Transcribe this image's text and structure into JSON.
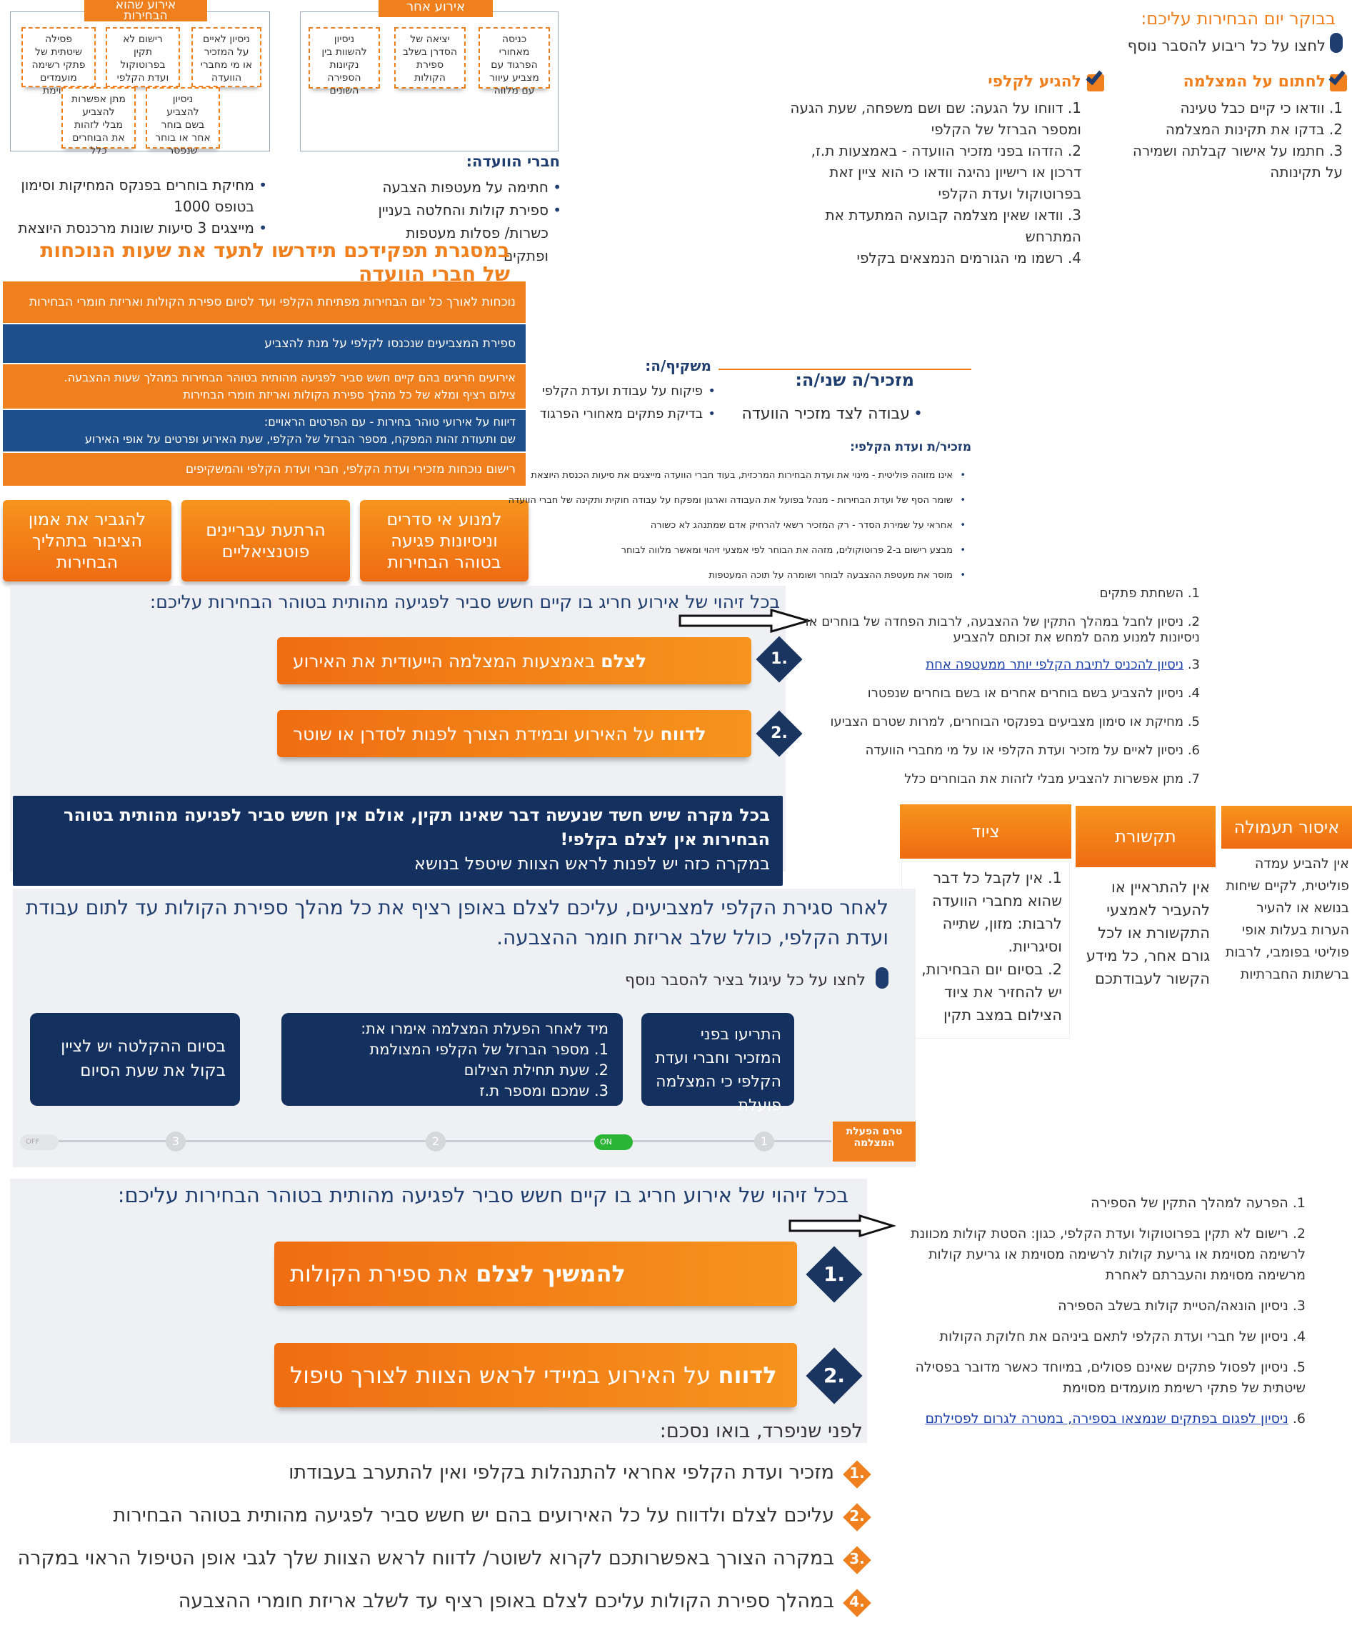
{
  "top_diagram": {
    "left_title": "אירוע שהוא\nהבחירות",
    "left_boxes": [
      "ניסיון לאיים\nעל המזכיר\nאו מי מחברי\nהוועדה",
      "רישום לא\nתקין\nבפרוטוקול\nועדת הקלפי",
      "פסילה\nשיטתית של\nפתקי רשימה\nמועמדים\nמסוימת",
      "ניסיון\nלהצביע\nבשם בוחר\nאחר או בוחר\nשנפטר",
      "מתן אפשרות\nלהצביע\nמבלי לזהות\nאת הבוחרים\nכלל"
    ],
    "right_title": "אירוע אחר",
    "right_boxes": [
      "כניסה\nמאחורי\nהפרגוד עם\nמצביע עיוור\nעם מלווה",
      "יציאה של\nהסדרן בשלב\nספירת\nהקולות",
      "ניסיון\nלהשוות בין\nנקיונות\nהספירה\nהשונים"
    ]
  },
  "committee": {
    "heading": "חברי הוועדה:",
    "right_items": [
      "חתימה על מעטפות הצבעה",
      "ספירת קולות והחלטה בעניין כשרות/ פסלות מעטפות ופתקים"
    ],
    "left_items": [
      "מחיקת בוחרים בפנקס המחיקות וסימון בטופס 1000",
      "מייצגים 3 סיעות שונות מרכנסת היוצאת"
    ],
    "big_title": "במסגרת תפקידכם תידרשו לתעד את שעות הנוכחות של חברי הוועדה"
  },
  "morning": {
    "heading": "בבוקר יום הבחירות עליכם:",
    "hint": "לחצו על כל ריבוע להסבר נוסף",
    "camera_title": "לחתום על המצלמה",
    "camera_items": [
      "וודאו כי קיים כבל טעינה",
      "בדקו את תקינות המצלמה",
      "חתמו על אישור קבלתה ושמירה על תקינותה"
    ],
    "camera_link": "המצלמה",
    "arrive_title": "להגיע לקלפי",
    "arrive_items": [
      "דווחו על הגעה: שם ושם משפחה, שעת הגעה ומספר הברזל של הקלפי",
      "הזדהו בפני מזכיר הוועדה - באמצעות ת.ז, דרכון או רישיון נהיגה וודאו כי הוא ציין זאת בפרוטוקול ועדת הקלפי",
      "וודאו שאין מצלמה קבועה המתעדת את המתרחש",
      "רשמו מי הגורמים הנמצאים בקלפי"
    ],
    "arrive_links": [
      "מספר הברזל של הקלפי",
      "פרוטוקול ועדת הקלפי"
    ]
  },
  "strips": [
    "נוכחות לאורך כל יום הבחירות מפתיחת הקלפי ועד לסיום ספירת הקולות ואריזת חומרי הבחירות",
    "ספירת המצביעים שנכנסו לקלפי על מנת להצביע",
    "אירועים חריגים בהם קיים חשש סביר לפגיעה מהותית בטוהר הבחירות במהלך שעות ההצבעה.\nצילום רציף ומלא של כל מהלך ספירת הקולות ואריזת חומרי הבחירות",
    "דיווח על אירועי טוהר בחירות - עם הפרטים הראויים:\nשם ותעודת זהות המפקח, מספר הברזל של הקלפי, שעת האירוע ופרטים על אופי האירוע",
    "רישום נוכחות מזכירי ועדת הקלפי, חברי ועדת הקלפי והמשקיפים"
  ],
  "tiles": [
    "למנוע אי סדרים\nוניסיונות פגיעה\nבטוהר הבחירות",
    "הרתעת עבריינים\nפוטנציאליים",
    "להגביר את אמון\nהציבור בתהליך\nהבחירות"
  ],
  "roles": {
    "observer_title": "משקיף/ה:",
    "observer_items": [
      "פיקוח על עבודת ועדת הקלפי",
      "בדיקת פתקים מאחורי הפרגוד"
    ],
    "secretary2_title": "מזכיר/ה שני/ה:",
    "secretary2_items": [
      "עבודה לצד מזכיר הוועדה"
    ],
    "secretary_title": "מזכיר/ת ועדת הקלפי:",
    "secretary_items": [
      "אינו מזוהה פוליטית - מינוי את ועדת הבחירות המרכזית, בעוד חברי הוועדה מייצגים את סיעות הכנסת היוצאת",
      "שומר הסף של ועדת הבחירות - מנהל בפועל את העבודה וארגון ומפקח על עבודה חוקית ותקינה של חברי הוועדה",
      "אחראי על שמירת הסדר - רק המזכיר רשאי להרחיק אדם שמתנהג לא כשורה",
      "מבצע רישום ב-2 פרוטוקולים, מזהה את הבוחר לפי אמצעי זיהוי ומאשר מלווה לבוחר",
      "מוסר את מעטפת ההצבעה לבוחר ושומרה על תוכה המעטפות"
    ]
  },
  "section1": {
    "intro": "בכל זיהוי של אירוע חריג בו קיים חשש סביר לפגיעה מהותית בטוהר הבחירות עליכם:",
    "link": "אירוע חריג",
    "steps": [
      {
        "num": "1.",
        "bold": "לצלם",
        "text": " באמצעות המצלמה הייעודית את האירוע"
      },
      {
        "num": "2.",
        "bold": "לדווח",
        "text": " על האירוע ובמידת הצורך לפנות לסדרן או שוטר"
      }
    ],
    "list": [
      "השחתת פתקים",
      "ניסיון לחבל במהלך התקין של ההצבעה, לרבות הפחדה של בוחרים או ניסיונות למנוע מהם למחש את זכותם להצביע",
      "ניסיון להכניס לתיבת הקלפי יותר ממעטפה אחת",
      "ניסיון להצביע בשם בוחרים אחרים או בשם בוחרים שנפטרו",
      "מחיקת או סימון מצביעים בפנקסי הבוחרים, למרות שטרם הצביעו",
      "ניסיון לאיים על מזכיר ועדת הקלפי או על מי מחברי הוועדה",
      "מתן אפשרות להצביע מבלי לזהות את הבוחרים כלל"
    ],
    "list_links": [
      "להכניס לתיבת הקלפי יותר ממעטפה אחת",
      "מחיקת או סימון מצביעים"
    ],
    "navy_note_1": "בכל מקרה שיש חשד שנעשה דבר שאינו תקין, אולם אין חשש סביר לפגיעה מהותית בטוהר הבחירות אין לצלם בקלפי!",
    "navy_note_2": "במקרה כזה יש לפנות לראש הצוות שיטפל בנושא"
  },
  "columns": [
    {
      "head": "ציוד",
      "body": "1. אין לקבל כל דבר שהוא מחברי הוועדה לרבות: מזון, שתייה וסיגריות.\n2. בסיום יום הבחירות, יש להחזיר את ציוד הצילום במצב תקין"
    },
    {
      "head": "תקשורת",
      "body": "אין להתראיין או להעביר לאמצעי התקשורת או לכל גורם אחר, כל מידע הקשור לעבודתכם"
    },
    {
      "head": "איסור תעמולה",
      "body": "אין להביע עמדה פוליטית, לקיים שיחות בנושא או להעיר הערות בעלות אופי פוליטי בפומבי, לרבות ברשתות החברתיות"
    }
  ],
  "closing": {
    "text": "לאחר סגירת הקלפי למצביעים, עליכם לצלם באופן רציף את כל מהלך ספירת הקולות עד לתום עבודת ועדת הקלפי, כולל שלב אריזת חומר ההצבעה.",
    "hint": "לחצו על כל עיגול בציר להסבר נוסף",
    "boxes": [
      "התריעו בפני המזכיר וחברי ועדת הקלפי כי המצלמה פועלת",
      "מיד לאחר הפעלת המצלמה אימרו את:\n1. מספר הברזל של הקלפי המצולמת\n2. שעת תחילת הצילום\n3. שמכם ומספר ת.ז",
      "בסיום ההקלטה יש לציין בקול את שעת הסיום"
    ],
    "timeline_label": "טרם הפעלת המצלמה",
    "toggle_on": "ON",
    "toggle_off": "OFF",
    "nodes": [
      "1",
      "2",
      "3"
    ]
  },
  "section2": {
    "intro": "בכל זיהוי של אירוע חריג בו קיים חשש סביר לפגיעה מהותית בטוהר הבחירות עליכם:",
    "steps": [
      {
        "num": "1.",
        "bold": "להמשיך לצלם",
        "text": " את ספירת הקולות"
      },
      {
        "num": "2.",
        "bold": "לדווח",
        "text": " על האירוע במיידי לראש הצוות לצורך טיפול"
      }
    ],
    "list": [
      "הפרעה למהלך התקין של הספירה",
      "רישום לא תקין בפרוטוקול ועדת הקלפי, כגון: הסטת קולות מכוונת לרשימה מסוימת או גריעת קולות לרשימה מסוימת או גריעת קולות מרשימה מסוימת והעברתם לאחרת",
      "ניסיון הונאה/הטיית קולות בשלב הספירה",
      "ניסיון של חברי ועדת הקלפי לתאם ביניהם את חלוקת הקולות",
      "ניסיון לפסול פתקים שאינם פסולים, במיוחד כאשר מדובר בפסילה שיטתית של פתקי רשימת מועמדים מסוימת",
      "ניסיון לפגום בפתקים שנמצאו בספירה, במטרה לגרום לפסילתם"
    ],
    "summary_title": "לפני שניפרד, בואו נסכם:",
    "summary": [
      {
        "num": "1.",
        "text": "מזכיר ועדת הקלפי אחראי להתנהלות בקלפי ואין להתערב בעבודתו"
      },
      {
        "num": "2.",
        "text": "עליכם לצלם ולדווח על כל האירועים בהם יש חשש סביר לפגיעה מהותית בטוהר הבחירות"
      },
      {
        "num": "3.",
        "text": "במקרה הצורך באפשרותכם לקרוא לשוטר/ לדווח לראש הצוות שלך לגבי אופן הטיפול הראוי במקרה"
      },
      {
        "num": "4.",
        "text": "במהלך ספירת הקולות עליכם לצלם באופן רציף עד לשלב אריזת חומרי ההצבעה"
      }
    ]
  },
  "colors": {
    "orange": "#f07f1e",
    "navy": "#14305f",
    "blue": "#1f4f8a",
    "link": "#1a3fa8"
  }
}
